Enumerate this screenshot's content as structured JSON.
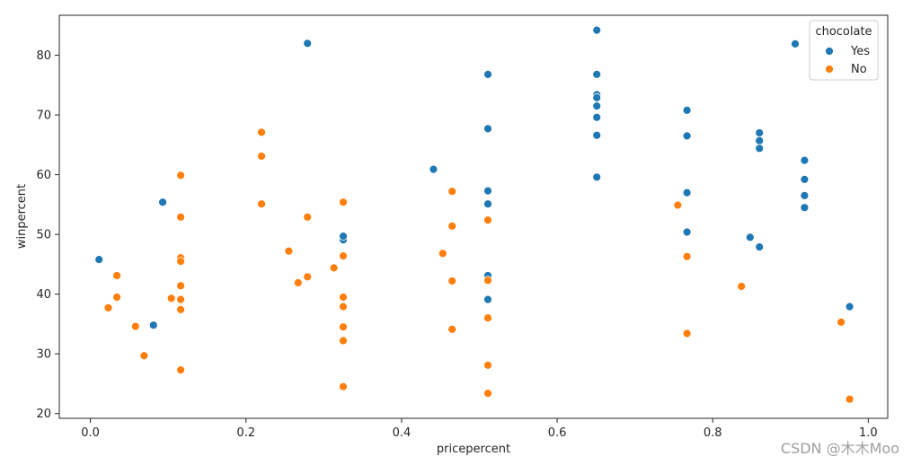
{
  "chart_data": {
    "type": "scatter",
    "title": "",
    "xlabel": "pricepercent",
    "ylabel": "winpercent",
    "xlim": [
      -0.04,
      1.025
    ],
    "ylim": [
      19.2,
      86.7
    ],
    "xticks": [
      0.0,
      0.2,
      0.4,
      0.6,
      0.8,
      1.0
    ],
    "xtick_labels": [
      "0.0",
      "0.2",
      "0.4",
      "0.6",
      "0.8",
      "1.0"
    ],
    "yticks": [
      20,
      30,
      40,
      50,
      60,
      70,
      80
    ],
    "ytick_labels": [
      "20",
      "30",
      "40",
      "50",
      "60",
      "70",
      "80"
    ],
    "grid": false,
    "legend": {
      "title": "chocolate",
      "position": "top-right"
    },
    "series": [
      {
        "name": "Yes",
        "color": "#1f77b4",
        "points": [
          [
            0.011,
            45.8
          ],
          [
            0.081,
            34.8
          ],
          [
            0.093,
            55.4
          ],
          [
            0.279,
            82.0
          ],
          [
            0.325,
            49.1
          ],
          [
            0.325,
            49.7
          ],
          [
            0.441,
            60.9
          ],
          [
            0.511,
            76.8
          ],
          [
            0.511,
            67.7
          ],
          [
            0.511,
            57.3
          ],
          [
            0.511,
            55.1
          ],
          [
            0.511,
            43.1
          ],
          [
            0.511,
            39.1
          ],
          [
            0.651,
            84.2
          ],
          [
            0.651,
            76.8
          ],
          [
            0.651,
            73.4
          ],
          [
            0.651,
            72.9
          ],
          [
            0.651,
            71.5
          ],
          [
            0.651,
            69.6
          ],
          [
            0.651,
            66.6
          ],
          [
            0.651,
            59.6
          ],
          [
            0.767,
            70.8
          ],
          [
            0.767,
            66.5
          ],
          [
            0.767,
            57.0
          ],
          [
            0.767,
            50.4
          ],
          [
            0.848,
            49.5
          ],
          [
            0.86,
            67.0
          ],
          [
            0.86,
            65.7
          ],
          [
            0.86,
            64.4
          ],
          [
            0.86,
            47.9
          ],
          [
            0.906,
            81.9
          ],
          [
            0.918,
            62.4
          ],
          [
            0.918,
            59.2
          ],
          [
            0.918,
            56.5
          ],
          [
            0.918,
            54.5
          ],
          [
            0.976,
            37.9
          ]
        ]
      },
      {
        "name": "No",
        "color": "#ff7f0e",
        "points": [
          [
            0.023,
            37.7
          ],
          [
            0.034,
            43.1
          ],
          [
            0.034,
            39.5
          ],
          [
            0.058,
            34.6
          ],
          [
            0.069,
            29.7
          ],
          [
            0.104,
            39.3
          ],
          [
            0.116,
            59.9
          ],
          [
            0.116,
            52.9
          ],
          [
            0.116,
            46.1
          ],
          [
            0.116,
            45.5
          ],
          [
            0.116,
            41.4
          ],
          [
            0.116,
            39.1
          ],
          [
            0.116,
            37.4
          ],
          [
            0.116,
            27.3
          ],
          [
            0.22,
            67.1
          ],
          [
            0.22,
            63.1
          ],
          [
            0.22,
            55.1
          ],
          [
            0.255,
            47.2
          ],
          [
            0.267,
            41.9
          ],
          [
            0.279,
            52.9
          ],
          [
            0.279,
            42.9
          ],
          [
            0.313,
            44.4
          ],
          [
            0.325,
            55.4
          ],
          [
            0.325,
            46.4
          ],
          [
            0.325,
            39.5
          ],
          [
            0.325,
            37.9
          ],
          [
            0.325,
            34.5
          ],
          [
            0.325,
            32.2
          ],
          [
            0.325,
            24.5
          ],
          [
            0.453,
            46.8
          ],
          [
            0.465,
            57.2
          ],
          [
            0.465,
            51.4
          ],
          [
            0.465,
            42.2
          ],
          [
            0.465,
            34.1
          ],
          [
            0.511,
            52.4
          ],
          [
            0.511,
            42.3
          ],
          [
            0.511,
            36.0
          ],
          [
            0.511,
            28.1
          ],
          [
            0.511,
            23.4
          ],
          [
            0.755,
            54.9
          ],
          [
            0.767,
            46.3
          ],
          [
            0.767,
            33.4
          ],
          [
            0.837,
            41.3
          ],
          [
            0.965,
            35.3
          ],
          [
            0.976,
            22.4
          ]
        ]
      }
    ]
  },
  "watermark": "CSDN @木木Moo"
}
